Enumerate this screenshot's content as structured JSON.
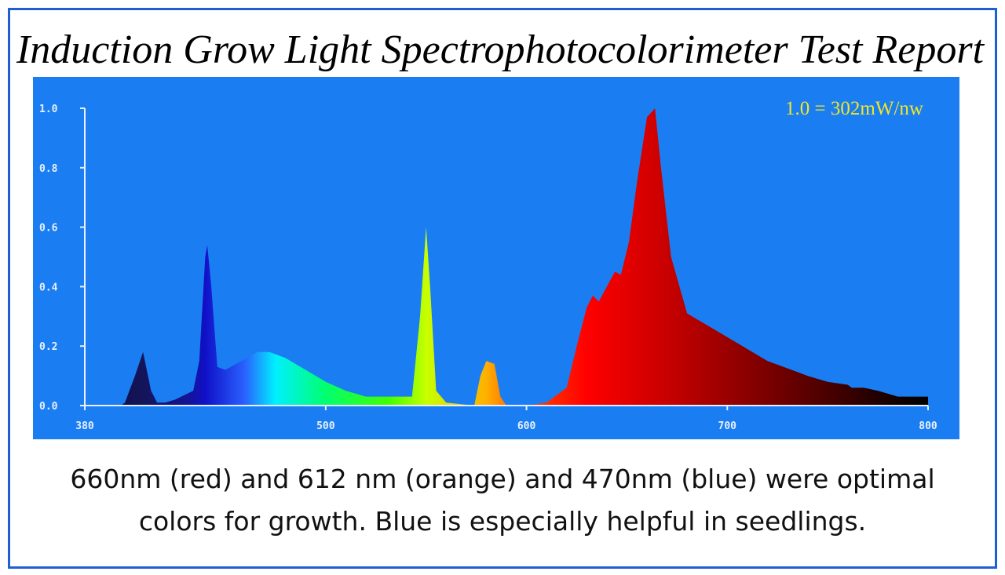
{
  "chart_data": {
    "type": "area",
    "title": "Induction Grow Light Spectrophotocolorimeter Test Report",
    "annotation": "1.0 = 302mW/nw",
    "caption": [
      "660nm (red) and 612 nm (orange) and 470nm  (blue) were optimal",
      "colors for growth.  Blue is especially  helpful in seedlings."
    ],
    "x": [
      380,
      398,
      400,
      405,
      409,
      413,
      416,
      420,
      425,
      434,
      437,
      440,
      441,
      443,
      446,
      450,
      458,
      466,
      472,
      480,
      490,
      500,
      510,
      520,
      543,
      547,
      550,
      552,
      555,
      560,
      574,
      577,
      580,
      584,
      587,
      590,
      600,
      610,
      620,
      625,
      630,
      633,
      636,
      644,
      647,
      651,
      655,
      660,
      664,
      667,
      672,
      680,
      700,
      720,
      740,
      750,
      760,
      762,
      768,
      775,
      785,
      800
    ],
    "values": [
      0,
      0,
      0.01,
      0.1,
      0.18,
      0.05,
      0.01,
      0.01,
      0.02,
      0.05,
      0.15,
      0.5,
      0.54,
      0.4,
      0.13,
      0.12,
      0.15,
      0.18,
      0.18,
      0.16,
      0.12,
      0.08,
      0.05,
      0.03,
      0.03,
      0.3,
      0.6,
      0.4,
      0.05,
      0.01,
      0,
      0.1,
      0.15,
      0.14,
      0.03,
      0,
      0,
      0.01,
      0.06,
      0.2,
      0.33,
      0.37,
      0.35,
      0.45,
      0.44,
      0.55,
      0.75,
      0.97,
      1.0,
      0.8,
      0.5,
      0.31,
      0.23,
      0.15,
      0.1,
      0.08,
      0.07,
      0.06,
      0.06,
      0.05,
      0.03,
      0.03
    ],
    "xlim": [
      380,
      800
    ],
    "ylim": [
      0,
      1
    ],
    "xticks": [
      380,
      500,
      600,
      700,
      800
    ],
    "yticks": [
      {
        "value": 0,
        "label": "0.0"
      },
      0.2,
      0.4,
      0.6,
      0.8,
      {
        "value": 1,
        "label": "1.0"
      }
    ],
    "background": "#1a7ef2"
  }
}
